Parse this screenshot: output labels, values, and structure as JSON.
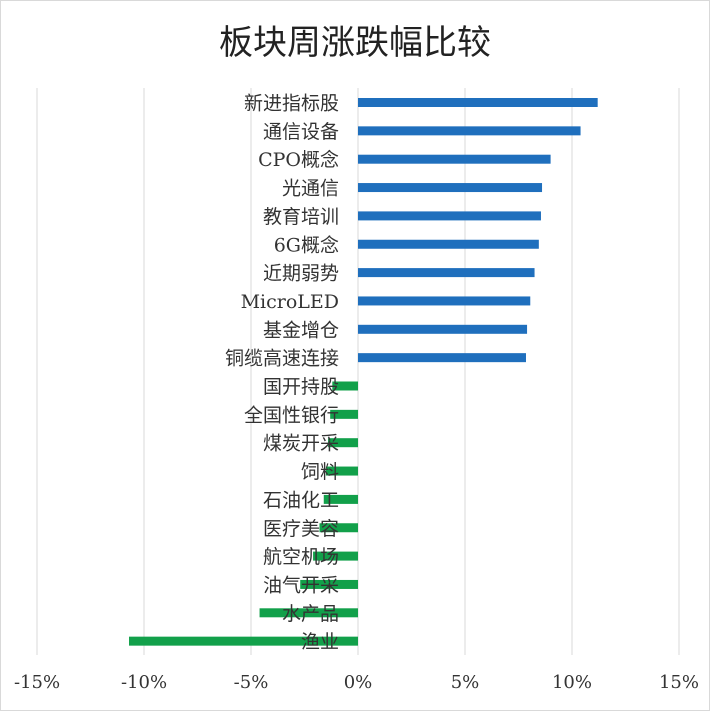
{
  "chart_data": {
    "type": "bar",
    "orientation": "horizontal",
    "title": "板块周涨跌幅比较",
    "categories": [
      "新进指标股",
      "通信设备",
      "CPO概念",
      "光通信",
      "教育培训",
      "6G概念",
      "近期弱势",
      "MicroLED",
      "基金增仓",
      "铜缆高速连接",
      "国开持股",
      "全国性银行",
      "煤炭开采",
      "饲料",
      "石油化工",
      "医疗美容",
      "航空机场",
      "油气开采",
      "水产品",
      "渔业"
    ],
    "values": [
      11.2,
      10.4,
      9.0,
      8.6,
      8.55,
      8.45,
      8.25,
      8.05,
      7.9,
      7.85,
      -1.2,
      -1.3,
      -1.4,
      -1.5,
      -1.6,
      -1.8,
      -2.1,
      -2.7,
      -4.6,
      -10.7
    ],
    "xlim": [
      -15,
      15
    ],
    "xticks": [
      -15,
      -10,
      -5,
      0,
      5,
      10,
      15
    ],
    "xtick_labels": [
      "-15%",
      "-10%",
      "-5%",
      "0%",
      "5%",
      "10%",
      "15%"
    ],
    "grid": "vertical",
    "legend": "none",
    "colors": {
      "positive": "#1f6fbd",
      "negative": "#12a04a"
    }
  }
}
